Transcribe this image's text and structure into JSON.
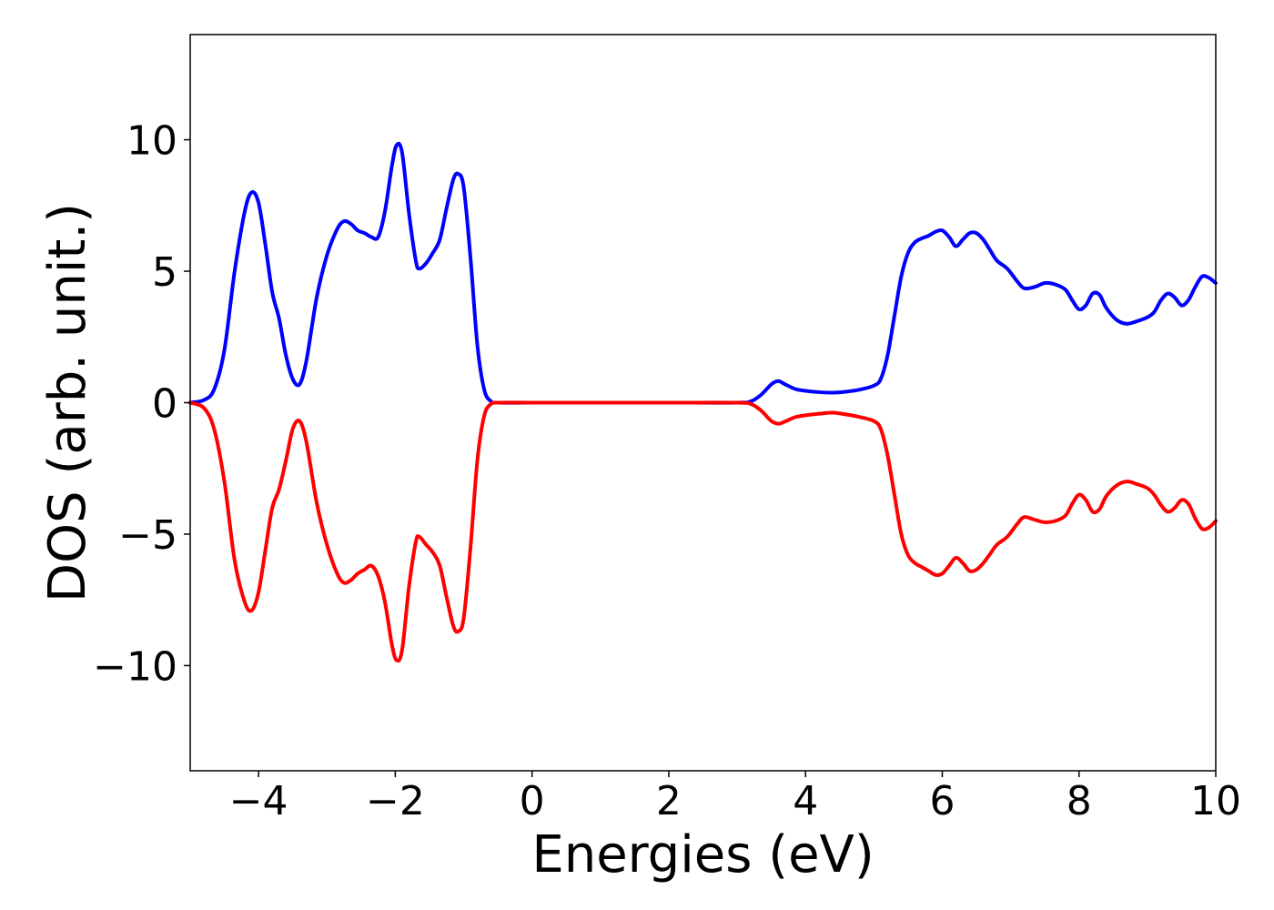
{
  "chart_data": {
    "type": "line",
    "title": "",
    "xlabel": "Energies (eV)",
    "ylabel": "DOS (arb. unit.)",
    "xlim": [
      -5,
      10
    ],
    "ylim": [
      -14,
      14
    ],
    "grid": false,
    "x_ticks": [
      -4,
      -2,
      0,
      2,
      4,
      6,
      8,
      10
    ],
    "x_tick_labels": [
      "−4",
      "−2",
      "0",
      "2",
      "4",
      "6",
      "8",
      "10"
    ],
    "y_ticks": [
      -10,
      -5,
      0,
      5,
      10
    ],
    "y_tick_labels": [
      "−10",
      "−5",
      "0",
      "5",
      "10"
    ],
    "series": [
      {
        "color": "#0000ff",
        "points": [
          [
            -5.0,
            0.0
          ],
          [
            -4.8,
            0.1
          ],
          [
            -4.65,
            0.5
          ],
          [
            -4.5,
            2.0
          ],
          [
            -4.35,
            5.0
          ],
          [
            -4.2,
            7.3
          ],
          [
            -4.1,
            8.0
          ],
          [
            -4.0,
            7.6
          ],
          [
            -3.9,
            6.0
          ],
          [
            -3.8,
            4.2
          ],
          [
            -3.7,
            3.2
          ],
          [
            -3.6,
            1.8
          ],
          [
            -3.5,
            0.9
          ],
          [
            -3.4,
            0.7
          ],
          [
            -3.3,
            1.6
          ],
          [
            -3.15,
            4.0
          ],
          [
            -3.0,
            5.6
          ],
          [
            -2.85,
            6.6
          ],
          [
            -2.75,
            6.9
          ],
          [
            -2.65,
            6.8
          ],
          [
            -2.55,
            6.55
          ],
          [
            -2.45,
            6.45
          ],
          [
            -2.35,
            6.3
          ],
          [
            -2.25,
            6.3
          ],
          [
            -2.15,
            7.3
          ],
          [
            -2.05,
            9.0
          ],
          [
            -1.98,
            9.8
          ],
          [
            -1.9,
            9.5
          ],
          [
            -1.8,
            7.2
          ],
          [
            -1.7,
            5.4
          ],
          [
            -1.65,
            5.1
          ],
          [
            -1.55,
            5.3
          ],
          [
            -1.45,
            5.7
          ],
          [
            -1.35,
            6.2
          ],
          [
            -1.25,
            7.4
          ],
          [
            -1.15,
            8.5
          ],
          [
            -1.08,
            8.7
          ],
          [
            -1.0,
            8.2
          ],
          [
            -0.9,
            5.5
          ],
          [
            -0.8,
            2.2
          ],
          [
            -0.7,
            0.5
          ],
          [
            -0.6,
            0.05
          ],
          [
            -0.5,
            0.0
          ],
          [
            0.0,
            0.0
          ],
          [
            1.0,
            0.0
          ],
          [
            2.0,
            0.0
          ],
          [
            3.0,
            0.0
          ],
          [
            3.2,
            0.05
          ],
          [
            3.35,
            0.3
          ],
          [
            3.5,
            0.7
          ],
          [
            3.6,
            0.82
          ],
          [
            3.7,
            0.7
          ],
          [
            3.85,
            0.52
          ],
          [
            4.0,
            0.45
          ],
          [
            4.2,
            0.4
          ],
          [
            4.4,
            0.38
          ],
          [
            4.6,
            0.42
          ],
          [
            4.8,
            0.5
          ],
          [
            5.0,
            0.65
          ],
          [
            5.1,
            0.9
          ],
          [
            5.2,
            1.8
          ],
          [
            5.3,
            3.3
          ],
          [
            5.4,
            4.8
          ],
          [
            5.5,
            5.7
          ],
          [
            5.6,
            6.1
          ],
          [
            5.7,
            6.25
          ],
          [
            5.8,
            6.35
          ],
          [
            5.9,
            6.5
          ],
          [
            6.0,
            6.55
          ],
          [
            6.1,
            6.3
          ],
          [
            6.2,
            5.95
          ],
          [
            6.3,
            6.2
          ],
          [
            6.4,
            6.45
          ],
          [
            6.5,
            6.45
          ],
          [
            6.6,
            6.2
          ],
          [
            6.7,
            5.8
          ],
          [
            6.8,
            5.4
          ],
          [
            6.95,
            5.1
          ],
          [
            7.1,
            4.6
          ],
          [
            7.2,
            4.35
          ],
          [
            7.35,
            4.4
          ],
          [
            7.5,
            4.55
          ],
          [
            7.65,
            4.5
          ],
          [
            7.8,
            4.3
          ],
          [
            7.9,
            3.9
          ],
          [
            8.0,
            3.55
          ],
          [
            8.1,
            3.7
          ],
          [
            8.2,
            4.15
          ],
          [
            8.3,
            4.1
          ],
          [
            8.4,
            3.6
          ],
          [
            8.55,
            3.15
          ],
          [
            8.7,
            3.0
          ],
          [
            8.85,
            3.1
          ],
          [
            9.0,
            3.25
          ],
          [
            9.1,
            3.45
          ],
          [
            9.2,
            3.9
          ],
          [
            9.3,
            4.15
          ],
          [
            9.4,
            4.0
          ],
          [
            9.5,
            3.7
          ],
          [
            9.6,
            3.9
          ],
          [
            9.7,
            4.4
          ],
          [
            9.8,
            4.8
          ],
          [
            9.9,
            4.75
          ],
          [
            10.0,
            4.55
          ]
        ]
      },
      {
        "color": "#ff0000",
        "points": [
          [
            -5.0,
            0.0
          ],
          [
            -4.8,
            -0.2
          ],
          [
            -4.65,
            -1.0
          ],
          [
            -4.5,
            -3.0
          ],
          [
            -4.35,
            -6.0
          ],
          [
            -4.2,
            -7.6
          ],
          [
            -4.1,
            -7.9
          ],
          [
            -4.0,
            -7.2
          ],
          [
            -3.9,
            -5.6
          ],
          [
            -3.8,
            -4.0
          ],
          [
            -3.7,
            -3.3
          ],
          [
            -3.6,
            -2.2
          ],
          [
            -3.5,
            -1.0
          ],
          [
            -3.4,
            -0.7
          ],
          [
            -3.3,
            -1.5
          ],
          [
            -3.15,
            -3.8
          ],
          [
            -3.0,
            -5.4
          ],
          [
            -2.85,
            -6.5
          ],
          [
            -2.75,
            -6.85
          ],
          [
            -2.65,
            -6.75
          ],
          [
            -2.55,
            -6.5
          ],
          [
            -2.45,
            -6.35
          ],
          [
            -2.35,
            -6.2
          ],
          [
            -2.25,
            -6.6
          ],
          [
            -2.15,
            -7.6
          ],
          [
            -2.05,
            -9.2
          ],
          [
            -1.98,
            -9.8
          ],
          [
            -1.9,
            -9.4
          ],
          [
            -1.8,
            -7.0
          ],
          [
            -1.7,
            -5.3
          ],
          [
            -1.65,
            -5.1
          ],
          [
            -1.55,
            -5.4
          ],
          [
            -1.45,
            -5.7
          ],
          [
            -1.35,
            -6.2
          ],
          [
            -1.25,
            -7.4
          ],
          [
            -1.15,
            -8.5
          ],
          [
            -1.08,
            -8.7
          ],
          [
            -1.0,
            -8.2
          ],
          [
            -0.9,
            -5.5
          ],
          [
            -0.8,
            -2.2
          ],
          [
            -0.7,
            -0.5
          ],
          [
            -0.6,
            -0.05
          ],
          [
            -0.5,
            0.0
          ],
          [
            0.0,
            0.0
          ],
          [
            1.0,
            0.0
          ],
          [
            2.0,
            0.0
          ],
          [
            3.0,
            0.0
          ],
          [
            3.2,
            -0.05
          ],
          [
            3.35,
            -0.3
          ],
          [
            3.5,
            -0.7
          ],
          [
            3.6,
            -0.8
          ],
          [
            3.7,
            -0.72
          ],
          [
            3.85,
            -0.55
          ],
          [
            4.0,
            -0.48
          ],
          [
            4.2,
            -0.42
          ],
          [
            4.4,
            -0.38
          ],
          [
            4.6,
            -0.45
          ],
          [
            4.8,
            -0.55
          ],
          [
            5.0,
            -0.7
          ],
          [
            5.1,
            -1.0
          ],
          [
            5.2,
            -2.0
          ],
          [
            5.3,
            -3.5
          ],
          [
            5.4,
            -5.0
          ],
          [
            5.5,
            -5.8
          ],
          [
            5.6,
            -6.1
          ],
          [
            5.7,
            -6.25
          ],
          [
            5.8,
            -6.4
          ],
          [
            5.9,
            -6.55
          ],
          [
            6.0,
            -6.5
          ],
          [
            6.1,
            -6.2
          ],
          [
            6.2,
            -5.9
          ],
          [
            6.3,
            -6.1
          ],
          [
            6.4,
            -6.4
          ],
          [
            6.5,
            -6.35
          ],
          [
            6.6,
            -6.1
          ],
          [
            6.7,
            -5.75
          ],
          [
            6.8,
            -5.4
          ],
          [
            6.95,
            -5.1
          ],
          [
            7.1,
            -4.6
          ],
          [
            7.2,
            -4.35
          ],
          [
            7.35,
            -4.45
          ],
          [
            7.5,
            -4.55
          ],
          [
            7.65,
            -4.5
          ],
          [
            7.8,
            -4.3
          ],
          [
            7.9,
            -3.85
          ],
          [
            8.0,
            -3.5
          ],
          [
            8.1,
            -3.7
          ],
          [
            8.2,
            -4.15
          ],
          [
            8.3,
            -4.05
          ],
          [
            8.4,
            -3.55
          ],
          [
            8.55,
            -3.15
          ],
          [
            8.7,
            -3.0
          ],
          [
            8.85,
            -3.1
          ],
          [
            9.0,
            -3.25
          ],
          [
            9.1,
            -3.5
          ],
          [
            9.2,
            -3.9
          ],
          [
            9.3,
            -4.15
          ],
          [
            9.4,
            -4.0
          ],
          [
            9.5,
            -3.7
          ],
          [
            9.6,
            -3.85
          ],
          [
            9.7,
            -4.4
          ],
          [
            9.8,
            -4.8
          ],
          [
            9.9,
            -4.75
          ],
          [
            10.0,
            -4.5
          ]
        ]
      }
    ]
  }
}
